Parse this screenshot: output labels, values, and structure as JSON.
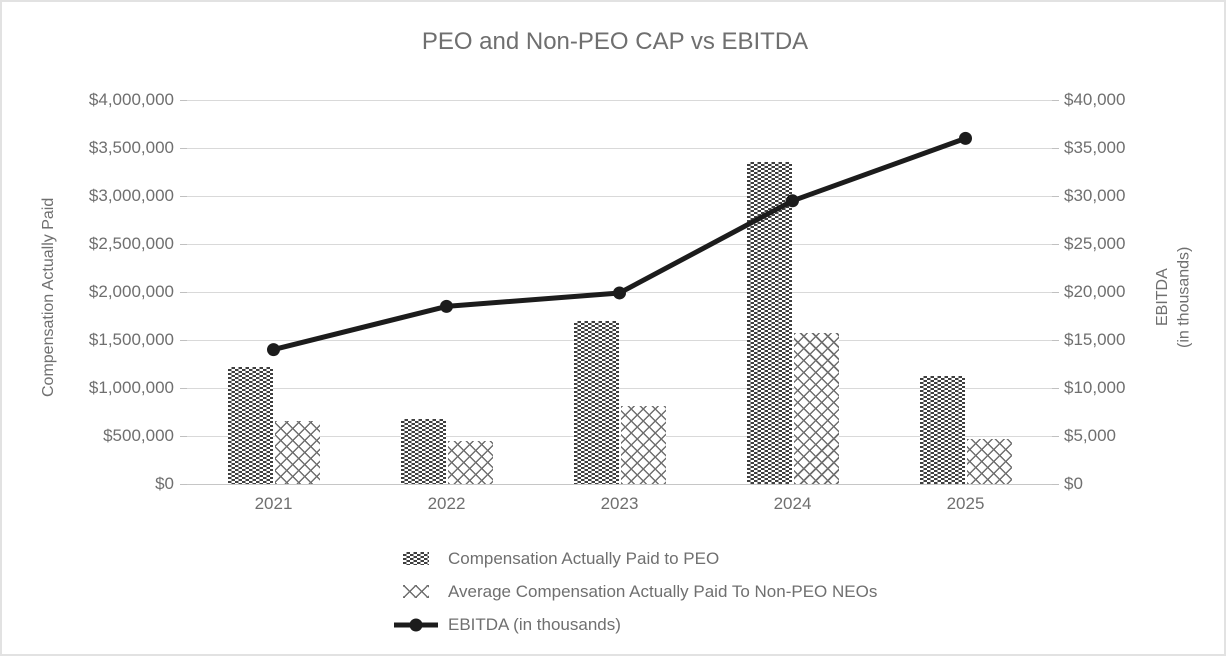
{
  "chart_data": {
    "type": "combo-bar-line",
    "title": "PEO and Non-PEO CAP vs EBITDA",
    "categories": [
      "2021",
      "2022",
      "2023",
      "2024",
      "2025"
    ],
    "series": [
      {
        "name": "Compensation Actually Paid to PEO",
        "type": "bar",
        "pattern": "dark-check",
        "axis": "left",
        "values": [
          1220000,
          680000,
          1700000,
          3350000,
          1120000
        ]
      },
      {
        "name": "Average Compensation Actually Paid To Non-PEO NEOs",
        "type": "bar",
        "pattern": "diamond-lattice",
        "axis": "left",
        "values": [
          660000,
          450000,
          810000,
          1575000,
          470000
        ]
      },
      {
        "name": "EBITDA (in thousands)",
        "type": "line",
        "axis": "right",
        "values": [
          14000,
          18500,
          19900,
          29500,
          36000
        ]
      }
    ],
    "left_axis": {
      "title": "Compensation Actually Paid",
      "min": 0,
      "max": 4000000,
      "tick_step": 500000,
      "tick_labels": [
        "$0",
        "$500,000",
        "$1,000,000",
        "$1,500,000",
        "$2,000,000",
        "$2,500,000",
        "$3,000,000",
        "$3,500,000",
        "$4,000,000"
      ]
    },
    "right_axis": {
      "title_line1": "EBITDA",
      "title_line2": "(in thousands)",
      "min": 0,
      "max": 40000,
      "tick_step": 5000,
      "tick_labels": [
        "$0",
        "$5,000",
        "$10,000",
        "$15,000",
        "$20,000",
        "$25,000",
        "$30,000",
        "$35,000",
        "$40,000"
      ]
    },
    "grid": true,
    "legend_position": "bottom"
  },
  "colors": {
    "line": "#1c1c1c",
    "bar_dark": "#3f3f3f",
    "lattice_stroke": "#6f6f6f",
    "text": "#6f6f6f",
    "gridline": "#d9d9d9"
  }
}
